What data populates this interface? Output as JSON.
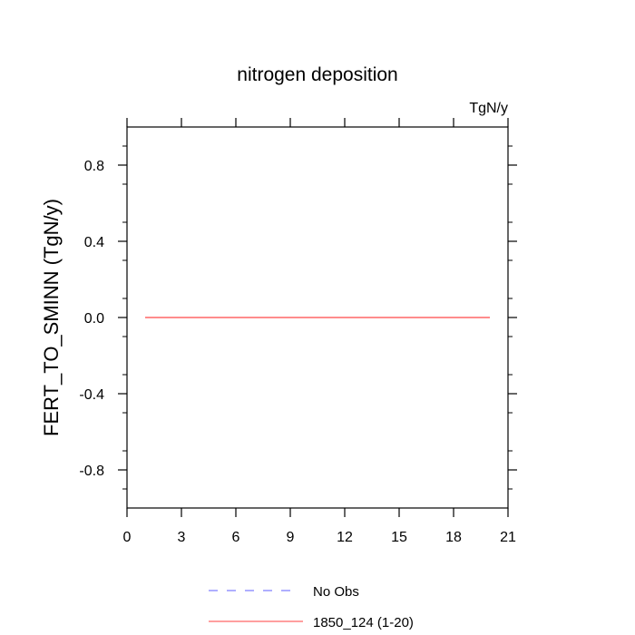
{
  "chart_data": {
    "type": "line",
    "title": "nitrogen deposition",
    "units_label": "TgN/y",
    "xlabel": "",
    "ylabel": "FERT_TO_SMINN  (TgN/y)",
    "xlim": [
      0,
      21
    ],
    "ylim": [
      -1,
      1
    ],
    "x_ticks": [
      0,
      3,
      6,
      9,
      12,
      15,
      18,
      21
    ],
    "y_ticks": [
      -0.8,
      -0.4,
      0.0,
      0.4,
      0.8
    ],
    "y_tick_labels": [
      "-0.8",
      "-0.4",
      "0.0",
      "0.4",
      "0.8"
    ],
    "grid": false,
    "legend_position": "bottom",
    "series": [
      {
        "name": "No Obs",
        "color": "#7f7fff",
        "dash": "dashed",
        "x": [],
        "y": []
      },
      {
        "name": "1850_124 (1-20)",
        "color": "#ff6666",
        "dash": "solid",
        "x": [
          1,
          2,
          3,
          4,
          5,
          6,
          7,
          8,
          9,
          10,
          11,
          12,
          13,
          14,
          15,
          16,
          17,
          18,
          19,
          20
        ],
        "y": [
          0,
          0,
          0,
          0,
          0,
          0,
          0,
          0,
          0,
          0,
          0,
          0,
          0,
          0,
          0,
          0,
          0,
          0,
          0,
          0
        ]
      }
    ]
  }
}
